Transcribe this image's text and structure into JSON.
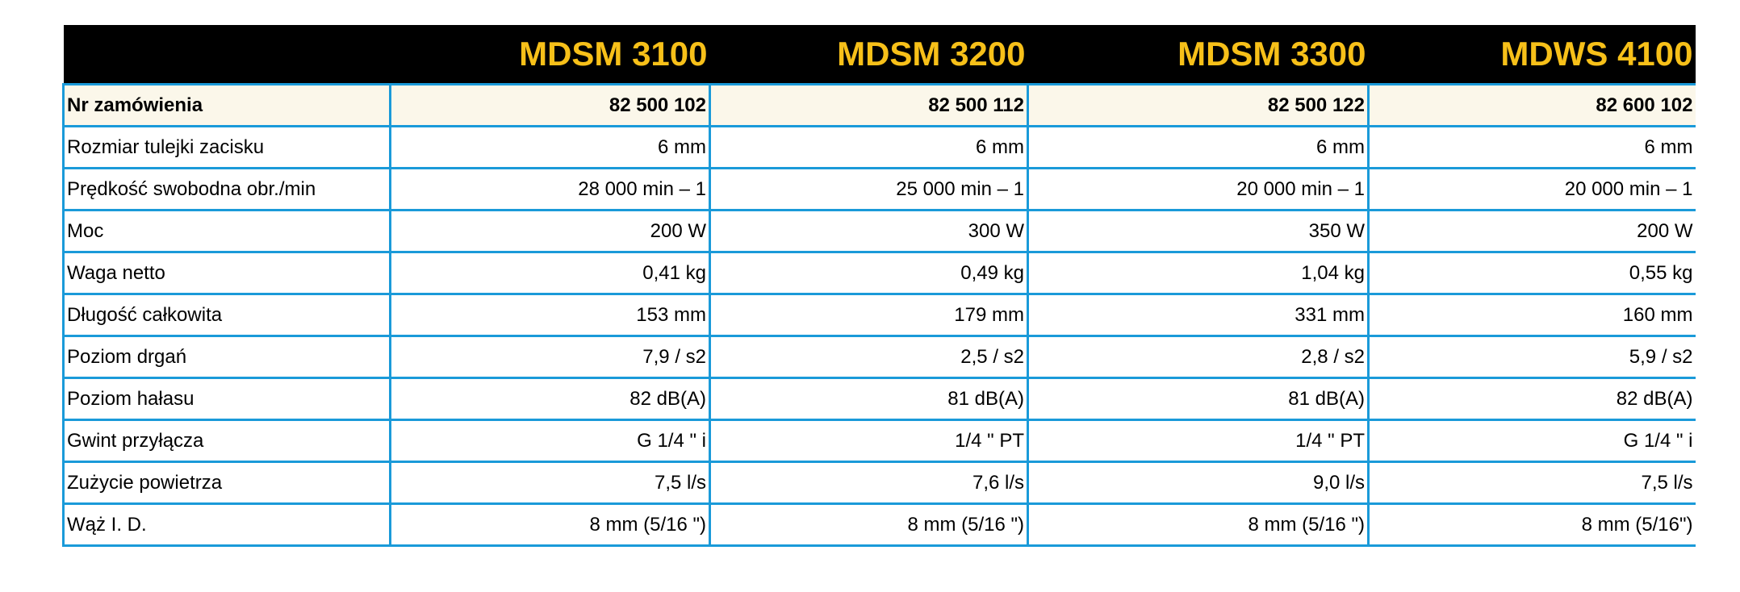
{
  "table": {
    "header": {
      "corner": "",
      "models": [
        "MDSM 3100",
        "MDSM 3200",
        "MDSM 3300",
        "MDWS 4100"
      ]
    },
    "rows": [
      {
        "label": "Nr zamówienia",
        "values": [
          "82 500 102",
          "82 500 112",
          "82 500 122",
          "82 600 102"
        ],
        "highlight": true
      },
      {
        "label": "Rozmiar tulejki zacisku",
        "values": [
          "6 mm",
          "6 mm",
          "6 mm",
          "6 mm"
        ]
      },
      {
        "label": "Prędkość swobodna obr./min",
        "values": [
          "28 000 min – 1",
          "25 000 min – 1",
          "20 000 min – 1",
          "20 000 min – 1"
        ]
      },
      {
        "label": "Moc",
        "values": [
          "200 W",
          "300 W",
          "350 W",
          "200 W"
        ]
      },
      {
        "label": "Waga netto",
        "values": [
          "0,41 kg",
          "0,49 kg",
          "1,04 kg",
          "0,55 kg"
        ]
      },
      {
        "label": "Długość całkowita",
        "values": [
          "153 mm",
          "179 mm",
          "331 mm",
          "160 mm"
        ]
      },
      {
        "label": "Poziom drgań",
        "values": [
          "7,9 / s2",
          "2,5 / s2",
          "2,8 / s2",
          "5,9 / s2"
        ]
      },
      {
        "label": "Poziom hałasu",
        "values": [
          "82 dB(A)",
          "81 dB(A)",
          "81 dB(A)",
          "82 dB(A)"
        ]
      },
      {
        "label": "Gwint przyłącza",
        "values": [
          "G 1/4 \" i",
          "1/4 \" PT",
          "1/4 \" PT",
          "G 1/4 \" i"
        ]
      },
      {
        "label": "Zużycie powietrza",
        "values": [
          "7,5 l/s",
          "7,6 l/s",
          "9,0 l/s",
          "7,5 l/s"
        ]
      },
      {
        "label": "Wąż I. D.",
        "values": [
          "8 mm (5/16 \")",
          "8 mm (5/16 \")",
          "8 mm (5/16 \")",
          "8 mm (5/16\")"
        ]
      }
    ],
    "colors": {
      "header_bg": "#000000",
      "header_text": "#f7c019",
      "border": "#1a9ad9",
      "highlight_row_bg": "#fbf7ea"
    }
  }
}
